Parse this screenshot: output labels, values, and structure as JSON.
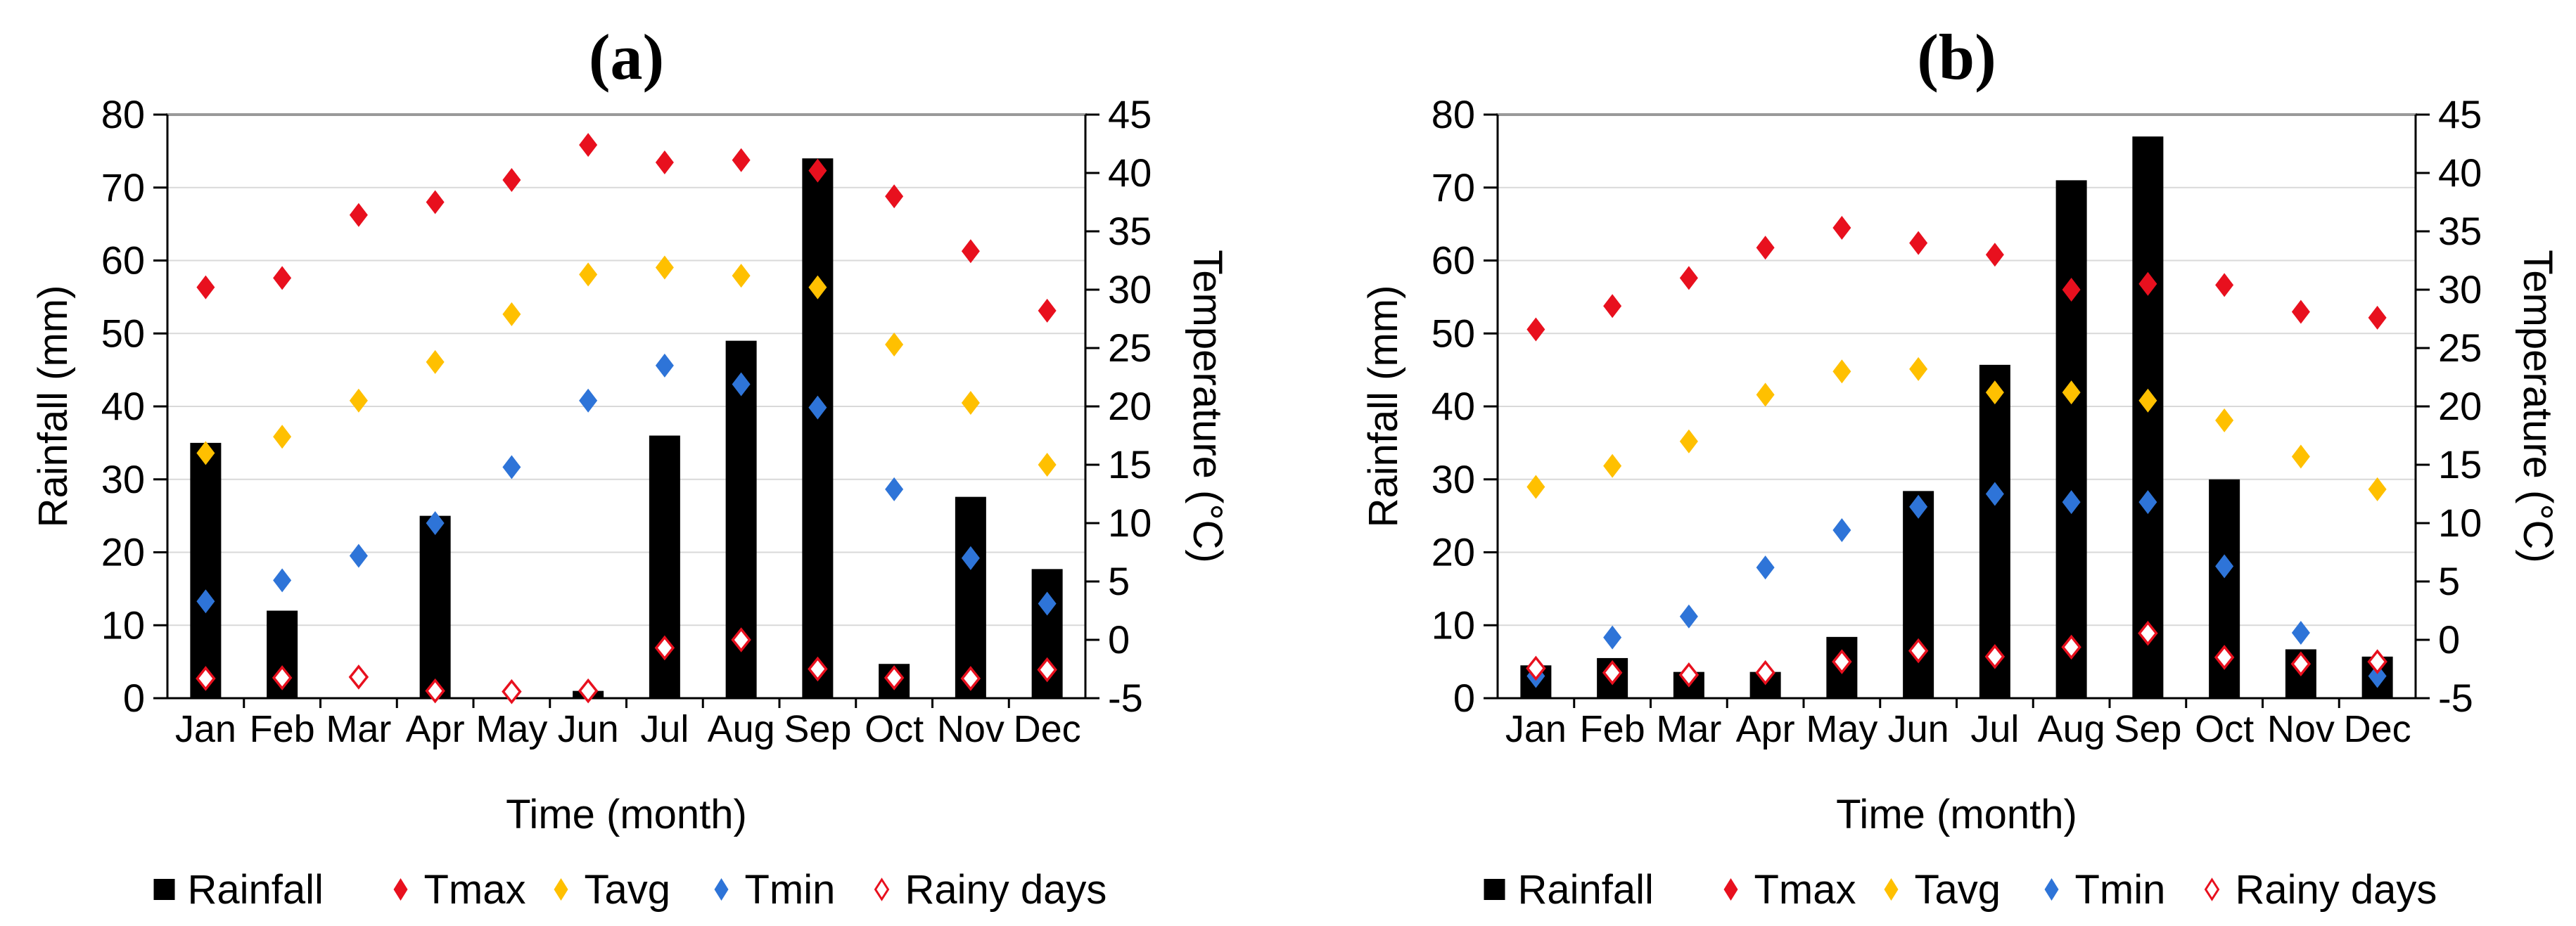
{
  "figure": {
    "background": "#ffffff",
    "panel_labels": [
      "(a)",
      "(b)"
    ]
  },
  "colors": {
    "bar": "#000000",
    "tmax": "#e8101e",
    "tavg": "#ffc000",
    "tmin": "#2e74d8",
    "rainy_stroke": "#e8101e",
    "rainy_fill": "#ffffff",
    "grid": "#d9d9d9",
    "top_border": "#999999",
    "axis": "#000000",
    "text": "#000000"
  },
  "chart_data": [
    {
      "type": "bar",
      "subtype": "combo-bar-scatter",
      "title": "(a)",
      "categories": [
        "Jan",
        "Feb",
        "Mar",
        "Apr",
        "May",
        "Jun",
        "Jul",
        "Aug",
        "Sep",
        "Oct",
        "Nov",
        "Dec"
      ],
      "xlabel": "Time (month)",
      "y_axis_left": {
        "title": "Rainfall (mm)",
        "min": 0,
        "max": 80,
        "step": 10,
        "tick_labels": [
          "0",
          "10",
          "20",
          "30",
          "40",
          "50",
          "60",
          "70",
          "80"
        ]
      },
      "y_axis_right": {
        "title": "Temperature (°C)",
        "min": -5,
        "max": 45,
        "step": 5,
        "tick_labels": [
          "-5",
          "0",
          "5",
          "10",
          "15",
          "20",
          "25",
          "30",
          "35",
          "40",
          "45"
        ]
      },
      "bar_series": {
        "name": "Rainfall",
        "unit": "mm",
        "axis": "left",
        "values": [
          35,
          12,
          0,
          25,
          0,
          1,
          36,
          49,
          74,
          4.7,
          27.6,
          17.7
        ]
      },
      "scatter_series": [
        {
          "name": "Tmax",
          "unit": "°C",
          "axis": "right",
          "marker": "diamond-filled",
          "color_key": "tmax",
          "values": [
            30.2,
            31.0,
            36.4,
            37.5,
            39.4,
            42.4,
            40.9,
            41.1,
            40.2,
            38.0,
            33.3,
            28.2
          ]
        },
        {
          "name": "Tavg",
          "unit": "°C",
          "axis": "right",
          "marker": "diamond-filled",
          "color_key": "tavg",
          "values": [
            16.0,
            17.4,
            20.5,
            23.8,
            27.9,
            31.3,
            31.9,
            31.2,
            30.2,
            25.3,
            20.3,
            15.0
          ]
        },
        {
          "name": "Tmin",
          "unit": "°C",
          "axis": "right",
          "marker": "diamond-filled",
          "color_key": "tmin",
          "values": [
            3.3,
            5.1,
            7.2,
            10.0,
            14.8,
            20.5,
            23.5,
            21.9,
            19.9,
            12.9,
            7.0,
            3.1
          ]
        },
        {
          "name": "Rainy days",
          "unit": "days",
          "axis": "left",
          "marker": "diamond-open",
          "color_key": "rainy_stroke",
          "values": [
            2.7,
            2.8,
            2.9,
            1.0,
            0.9,
            1.0,
            6.9,
            8.0,
            4.0,
            2.8,
            2.7,
            3.9
          ]
        }
      ],
      "legend": {
        "position": "bottom",
        "entries": [
          "Rainfall",
          "Tmax",
          "Tavg",
          "Tmin",
          "Rainy days"
        ]
      },
      "grid": "horizontal"
    },
    {
      "type": "bar",
      "subtype": "combo-bar-scatter",
      "title": "(b)",
      "categories": [
        "Jan",
        "Feb",
        "Mar",
        "Apr",
        "May",
        "Jun",
        "Jul",
        "Aug",
        "Sep",
        "Oct",
        "Nov",
        "Dec"
      ],
      "xlabel": "Time (month)",
      "y_axis_left": {
        "title": "Rainfall (mm)",
        "min": 0,
        "max": 80,
        "step": 10,
        "tick_labels": [
          "0",
          "10",
          "20",
          "30",
          "40",
          "50",
          "60",
          "70",
          "80"
        ]
      },
      "y_axis_right": {
        "title": "Temperature (°C)",
        "min": -5,
        "max": 45,
        "step": 5,
        "tick_labels": [
          "-5",
          "0",
          "5",
          "10",
          "15",
          "20",
          "25",
          "30",
          "35",
          "40",
          "45"
        ]
      },
      "bar_series": {
        "name": "Rainfall",
        "unit": "mm",
        "axis": "left",
        "values": [
          4.5,
          5.5,
          3.6,
          3.6,
          8.4,
          28.4,
          45.7,
          71,
          77,
          30,
          6.7,
          5.7
        ]
      },
      "scatter_series": [
        {
          "name": "Tmax",
          "unit": "°C",
          "axis": "right",
          "marker": "diamond-filled",
          "color_key": "tmax",
          "values": [
            26.6,
            28.6,
            31.0,
            33.6,
            35.3,
            34.0,
            33.0,
            30.0,
            30.5,
            30.4,
            28.1,
            27.6
          ]
        },
        {
          "name": "Tavg",
          "unit": "°C",
          "axis": "right",
          "marker": "diamond-filled",
          "color_key": "tavg",
          "values": [
            13.1,
            14.9,
            17.0,
            21.0,
            23.0,
            23.2,
            21.2,
            21.2,
            20.5,
            18.8,
            15.7,
            12.9
          ]
        },
        {
          "name": "Tmin",
          "unit": "°C",
          "axis": "right",
          "marker": "diamond-filled",
          "color_key": "tmin",
          "values": [
            -3.1,
            0.2,
            2.0,
            6.2,
            9.4,
            11.4,
            12.5,
            11.8,
            11.8,
            6.3,
            0.6,
            -3.1
          ]
        },
        {
          "name": "Rainy days",
          "unit": "days",
          "axis": "left",
          "marker": "diamond-open",
          "color_key": "rainy_stroke",
          "values": [
            4.1,
            3.5,
            3.2,
            3.5,
            5.0,
            6.5,
            5.7,
            7.0,
            8.9,
            5.6,
            4.7,
            5.0
          ]
        }
      ],
      "legend": {
        "position": "bottom",
        "entries": [
          "Rainfall",
          "Tmax",
          "Tavg",
          "Tmin",
          "Rainy days"
        ]
      },
      "grid": "horizontal"
    }
  ]
}
